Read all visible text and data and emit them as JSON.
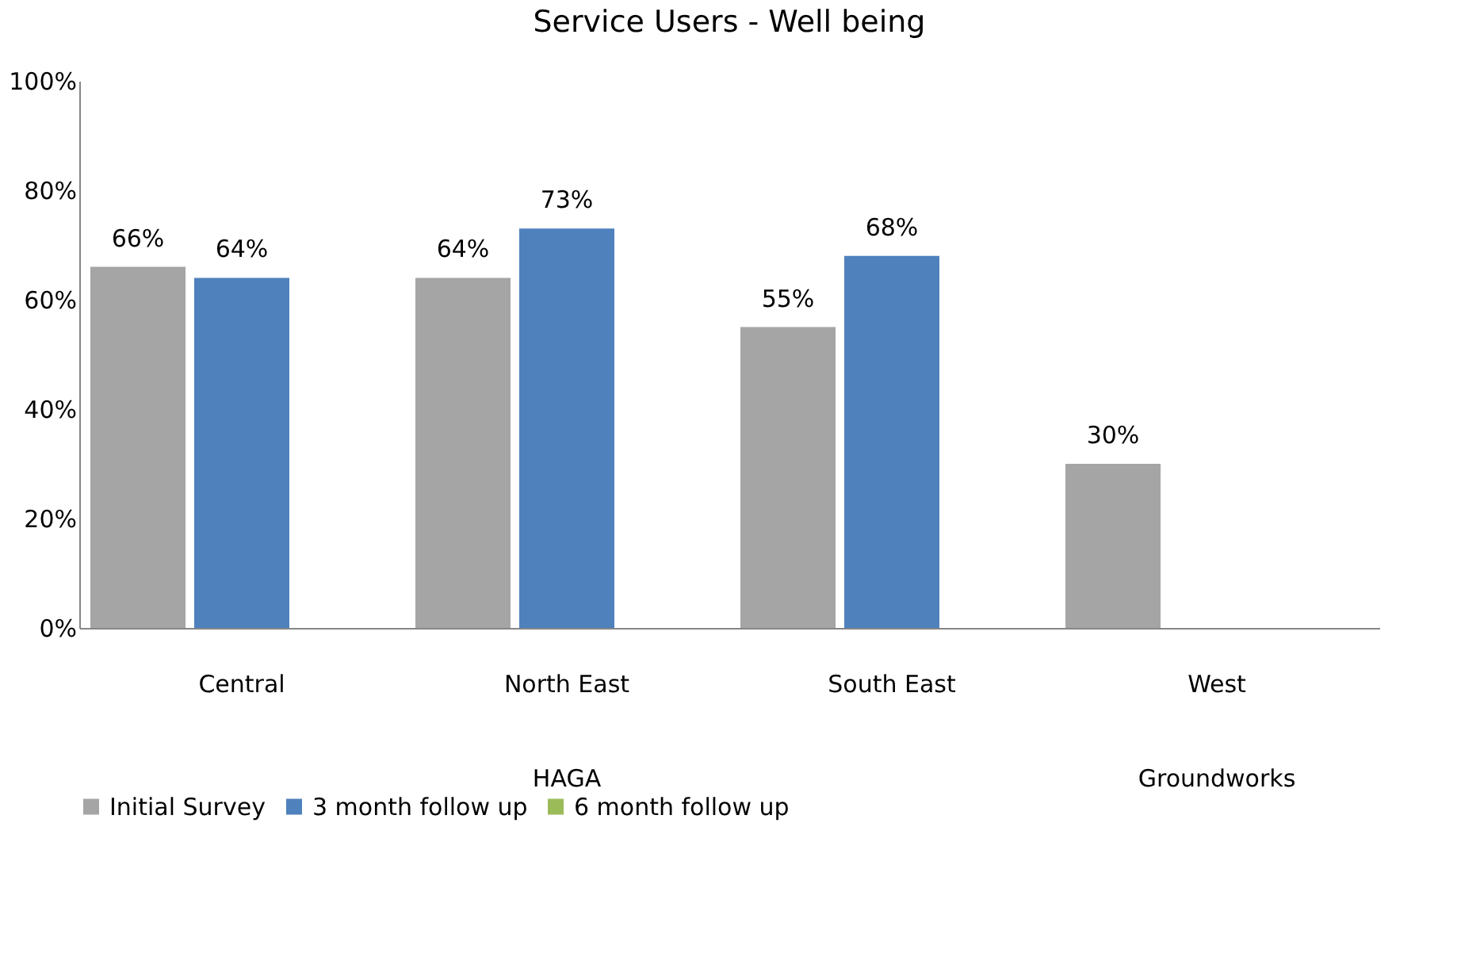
{
  "chart_data": {
    "type": "bar",
    "title": "Service Users - Well being",
    "categories": [
      "Central",
      "North East",
      "South East",
      "West"
    ],
    "series": [
      {
        "name": "Initial Survey",
        "color": "#a5a5a5",
        "values": [
          66,
          64,
          55,
          30
        ],
        "value_labels": [
          "66%",
          "64%",
          "55%",
          "30%"
        ]
      },
      {
        "name": "3 month follow up",
        "color": "#4f81bd",
        "values": [
          64,
          73,
          68,
          null
        ],
        "value_labels": [
          "64%",
          "73%",
          "68%",
          null
        ]
      },
      {
        "name": "6 month follow up",
        "color": "#9bbb59",
        "values": [
          null,
          null,
          null,
          null
        ],
        "value_labels": [
          null,
          null,
          null,
          null
        ]
      }
    ],
    "ylim": [
      0,
      100
    ],
    "yticks": [
      {
        "value": 0,
        "label": "0%"
      },
      {
        "value": 20,
        "label": "20%"
      },
      {
        "value": 40,
        "label": "40%"
      },
      {
        "value": 60,
        "label": "60%"
      },
      {
        "value": 80,
        "label": "80%"
      },
      {
        "value": 100,
        "label": "100%"
      }
    ],
    "grid": false,
    "legend": "bottom",
    "annotations": [
      "HAGA",
      "Groundworks"
    ]
  }
}
